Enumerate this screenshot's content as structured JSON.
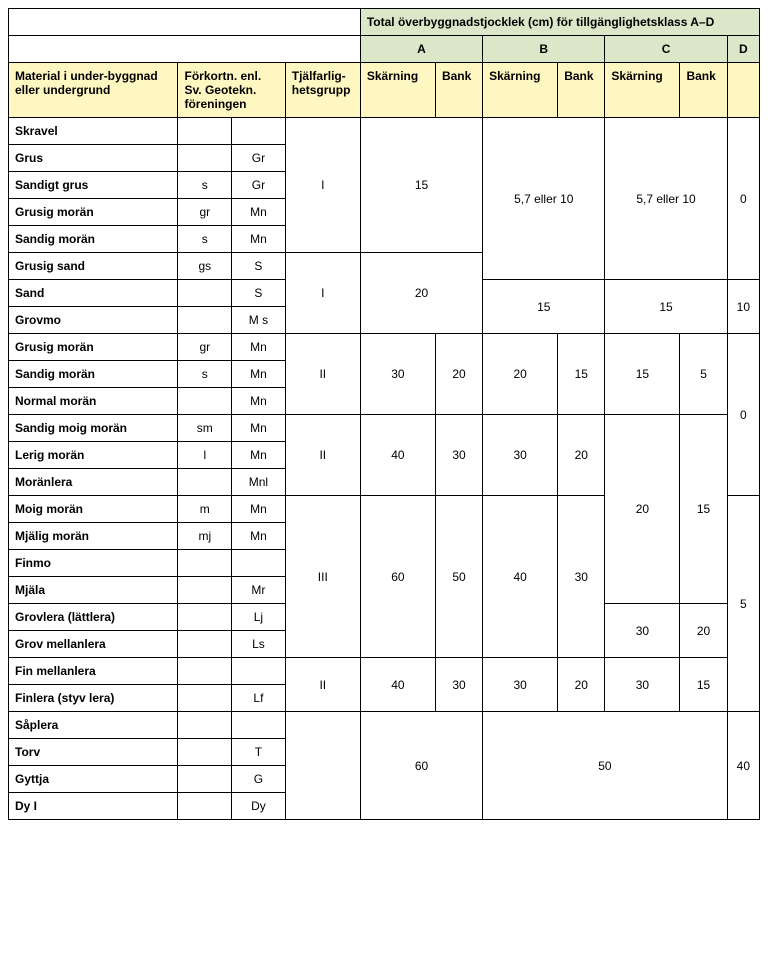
{
  "header": {
    "big": "Total överbyggnadstjocklek (cm) för tillgänglighetsklass A–D",
    "colA": "A",
    "colB": "B",
    "colC": "C",
    "colD": "D",
    "material": "Material i under-byggnad eller undergrund",
    "forkort": "Förkortn. enl. Sv. Geotekn. föreningen",
    "tjal": "Tjälfarlig-hetsgrupp",
    "skarning": "Skärning",
    "bank": "Bank"
  },
  "colors": {
    "green": "#dce7c9",
    "yellow": "#fff7c2",
    "border": "#000000",
    "text": "#000000",
    "bg": "#ffffff"
  },
  "cells": {
    "skravel": "Skravel",
    "grus": "Grus",
    "gr": "Gr",
    "sandigtGrus": "Sandigt grus",
    "s": "s",
    "grusigMoran": "Grusig morän",
    "gr2": "gr",
    "mn": "Mn",
    "sandigMoran": "Sandig morän",
    "grusigSand": "Grusig sand",
    "gs": "gs",
    "S": "S",
    "sand": "Sand",
    "grovmo": "Grovmo",
    "ms": "M s",
    "normalMoran": "Normal morän",
    "sandigMoigMoran": "Sandig moig morän",
    "sm": "sm",
    "lerigMoran": "Lerig morän",
    "l": "l",
    "moranlera": "Moränlera",
    "mnl": "Mnl",
    "moigMoran": "Moig morän",
    "m": "m",
    "mjaligMoran": "Mjälig morän",
    "mj": "mj",
    "finmo": "Finmo",
    "mjala": "Mjäla",
    "mr": "Mr",
    "grovlera": "Grovlera (lättlera)",
    "lj": "Lj",
    "grovMellanlera": "Grov mellanlera",
    "ls": "Ls",
    "finMellanlera": "Fin mellanlera",
    "finlera": "Finlera (styv lera)",
    "lf": "Lf",
    "saplera": "Såplera",
    "torv": "Torv",
    "t": "T",
    "gyttja": "Gyttja",
    "g": "G",
    "dyI": "Dy I",
    "dy": "Dy",
    "I": "I",
    "II": "II",
    "III": "III",
    "v0": "0",
    "v5": "5",
    "v10": "10",
    "v15": "15",
    "v20": "20",
    "v30": "30",
    "v40": "40",
    "v50": "50",
    "v60": "60",
    "v57": "5,7 eller 10"
  }
}
